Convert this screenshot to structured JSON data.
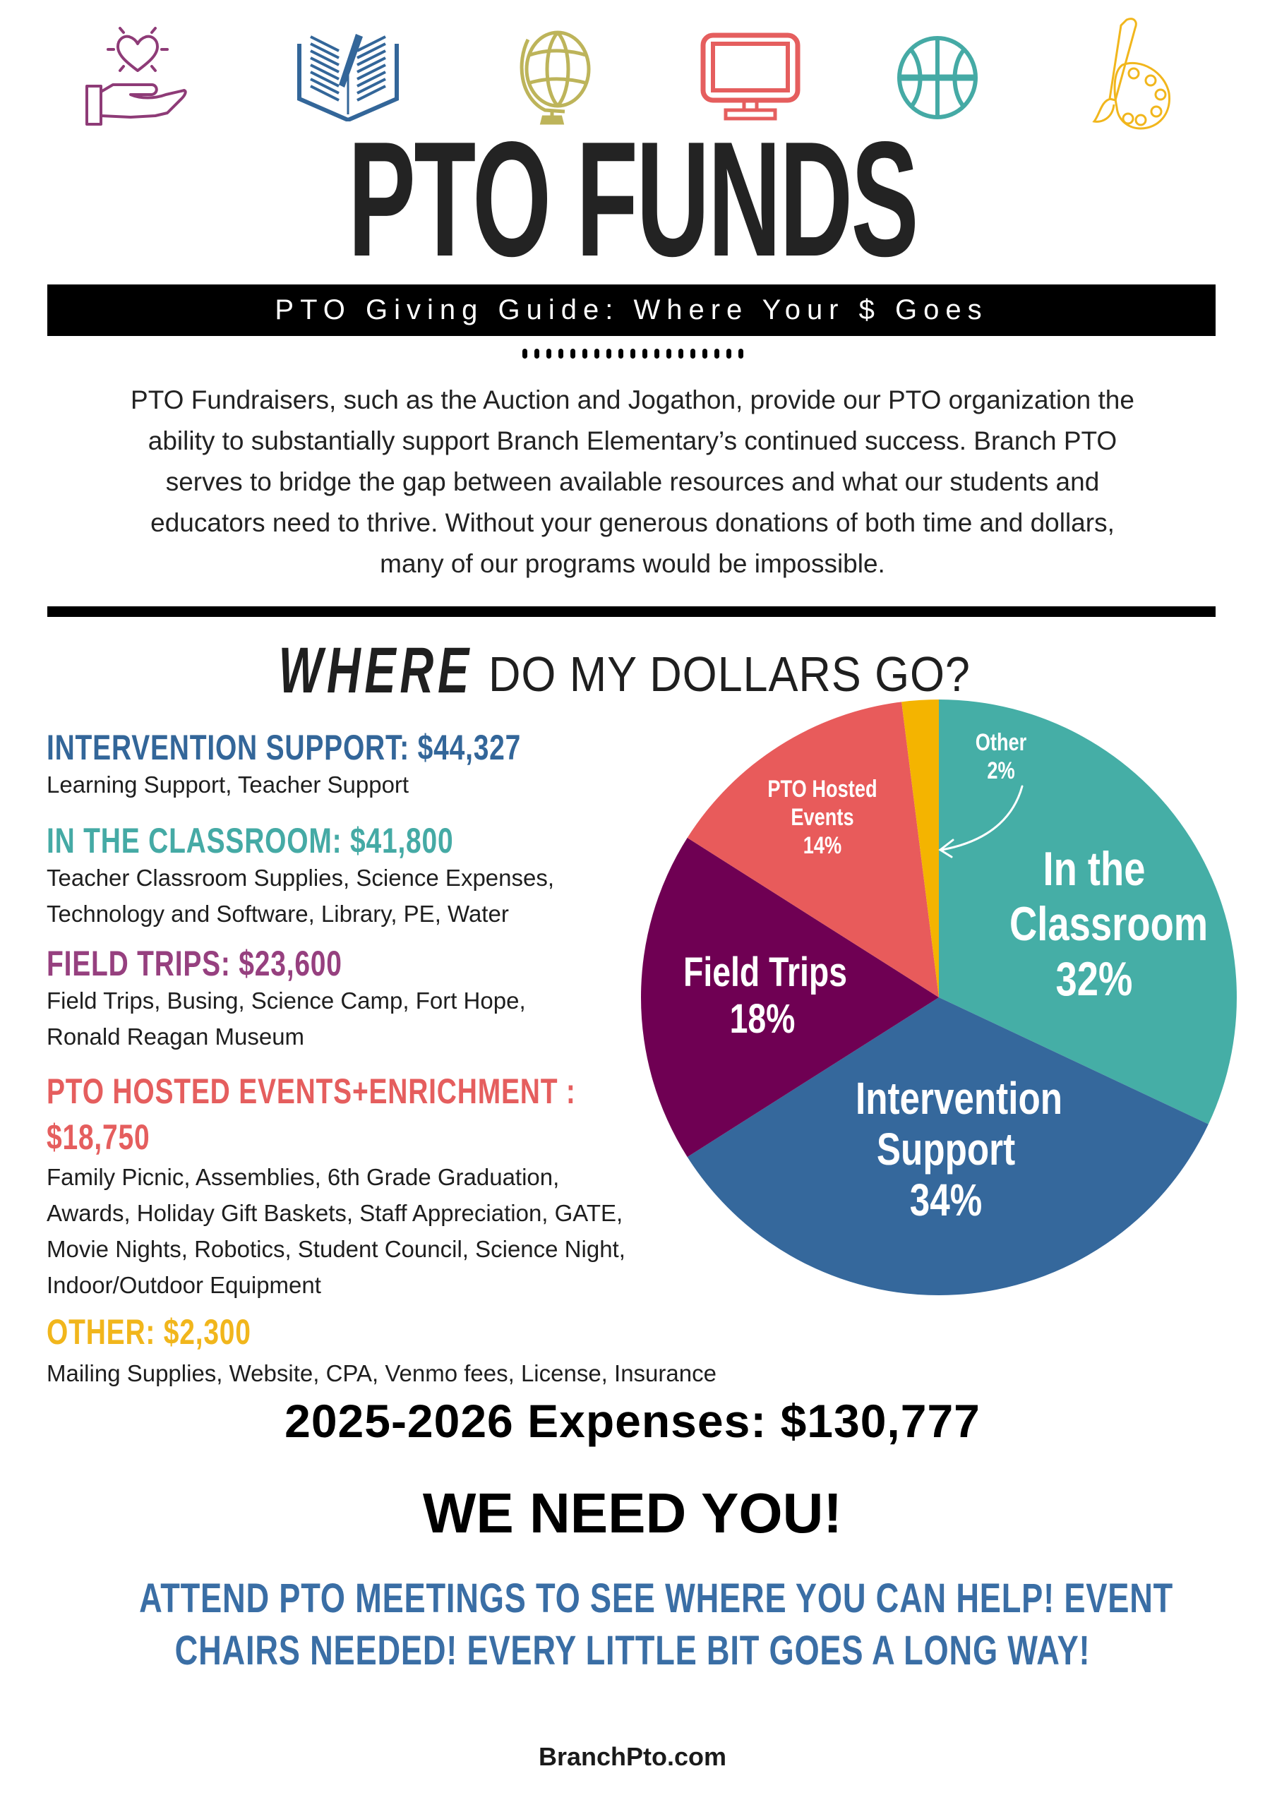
{
  "header": {
    "icons": [
      {
        "name": "hand-heart-icon",
        "color": "#8e3b77"
      },
      {
        "name": "open-book-pencil-icon",
        "color": "#336699"
      },
      {
        "name": "globe-icon",
        "color": "#bdb45a"
      },
      {
        "name": "computer-monitor-icon",
        "color": "#e55e5e"
      },
      {
        "name": "basketball-icon",
        "color": "#45aaa5"
      },
      {
        "name": "paint-palette-icon",
        "color": "#f1b61c"
      }
    ],
    "title": "PTO FUNDS",
    "subtitle": "PTO Giving Guide: Where Your $ Goes"
  },
  "intro": {
    "lines": [
      "PTO Fundraisers, such as the Auction and Jogathon, provide our PTO organization the",
      "ability to substantially support Branch Elementary’s continued success. Branch PTO",
      "serves to bridge the gap between available resources and what our students and",
      "educators need to thrive. Without your generous donations of both time and dollars,",
      "many of our programs would be impossible."
    ]
  },
  "section": {
    "heading_emphasis": "WHERE",
    "heading_rest": "DO MY DOLLARS GO?"
  },
  "categories": [
    {
      "heading": "INTERVENTION SUPPORT: $44,327",
      "color": "#336699",
      "description": [
        "Learning Support, Teacher Support"
      ]
    },
    {
      "heading": "IN THE CLASSROOM: $41,800",
      "color": "#45aaa5",
      "description": [
        "Teacher Classroom Supplies, Science Expenses,",
        "Technology and Software, Library, PE, Water"
      ]
    },
    {
      "heading": "FIELD TRIPS: $23,600",
      "color": "#96407f",
      "description": [
        "Field Trips, Busing, Science Camp, Fort Hope,",
        "Ronald Reagan Museum"
      ]
    },
    {
      "heading": "PTO HOSTED EVENTS+ENRICHMENT :",
      "heading_line2": "$18,750",
      "color": "#e55e5e",
      "description": [
        "Family Picnic, Assemblies, 6th Grade Graduation,",
        "Awards, Holiday Gift Baskets, Staff Appreciation, GATE,",
        "Movie Nights, Robotics, Student Council, Science Night,",
        "Indoor/Outdoor Equipment"
      ]
    },
    {
      "heading": "OTHER: $2,300",
      "color": "#f1b61c",
      "description": [
        "Mailing Supplies, Website, CPA, Venmo fees, License, Insurance"
      ]
    }
  ],
  "chart_data": {
    "type": "pie",
    "title": "WHERE DO MY DOLLARS GO?",
    "categories": [
      "In the Classroom",
      "Intervention Support",
      "Field Trips",
      "PTO Hosted Events",
      "Other"
    ],
    "values": [
      32,
      34,
      18,
      14,
      2
    ],
    "amounts": [
      41800,
      44327,
      23600,
      18750,
      2300
    ],
    "colors": [
      "#45aea6",
      "#35689c",
      "#6f0053",
      "#e85b5b",
      "#f4b400"
    ],
    "labels": [
      {
        "lines": [
          "In the",
          "Classroom",
          "32%"
        ]
      },
      {
        "lines": [
          "Intervention",
          "Support",
          "34%"
        ]
      },
      {
        "lines": [
          "Field Trips",
          "18%"
        ]
      },
      {
        "lines": [
          "PTO Hosted",
          "Events",
          "14%"
        ]
      },
      {
        "lines": [
          "Other",
          "2%"
        ]
      }
    ],
    "start_angle_deg": 0,
    "direction": "clockwise",
    "legend": "none",
    "annotations": [
      "arrow from 'Other 2%' label to the Other slice"
    ]
  },
  "summary": {
    "expenses": "2025-2026 Expenses: $130,777",
    "call_to_action": "WE NEED YOU!",
    "attend_lines": [
      "ATTEND PTO MEETINGS TO SEE WHERE YOU CAN HELP! EVENT",
      "CHAIRS NEEDED!  EVERY LITTLE BIT GOES A LONG WAY!"
    ],
    "website": "BranchPto.com"
  }
}
